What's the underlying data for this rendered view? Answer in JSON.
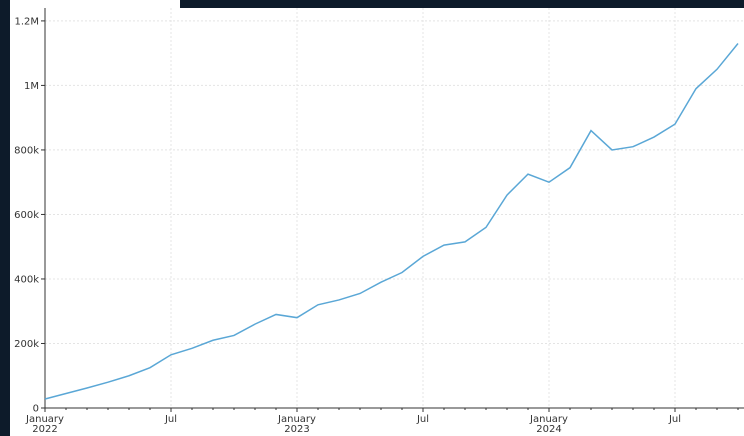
{
  "chart_data": {
    "type": "line",
    "x": [
      "2022-01",
      "2022-02",
      "2022-03",
      "2022-04",
      "2022-05",
      "2022-06",
      "2022-07",
      "2022-08",
      "2022-09",
      "2022-10",
      "2022-11",
      "2022-12",
      "2023-01",
      "2023-02",
      "2023-03",
      "2023-04",
      "2023-05",
      "2023-06",
      "2023-07",
      "2023-08",
      "2023-09",
      "2023-10",
      "2023-11",
      "2023-12",
      "2024-01",
      "2024-02",
      "2024-03",
      "2024-04",
      "2024-05",
      "2024-06",
      "2024-07",
      "2024-08",
      "2024-09",
      "2024-10"
    ],
    "series": [
      {
        "color": "#5aa7d6",
        "values": [
          28000,
          45000,
          62000,
          80000,
          100000,
          125000,
          165000,
          185000,
          210000,
          225000,
          260000,
          290000,
          280000,
          320000,
          335000,
          355000,
          390000,
          420000,
          470000,
          505000,
          515000,
          560000,
          660000,
          725000,
          700000,
          745000,
          860000,
          800000,
          810000,
          840000,
          880000,
          990000,
          1050000,
          1130000
        ]
      }
    ],
    "xlim": [
      "2022-01",
      "2024-10"
    ],
    "xticks": [
      {
        "value": "2022-01",
        "label": "January 2022"
      },
      {
        "value": "2022-07",
        "label": "Jul"
      },
      {
        "value": "2023-01",
        "label": "January 2023"
      },
      {
        "value": "2023-07",
        "label": "Jul"
      },
      {
        "value": "2024-01",
        "label": "January 2024"
      },
      {
        "value": "2024-07",
        "label": "Jul"
      }
    ],
    "ylim": [
      0,
      1240000
    ],
    "yticks": [
      0,
      {
        "value": 200000,
        "label": "200k"
      },
      {
        "value": 400000,
        "label": "400k"
      },
      {
        "value": 600000,
        "label": "600k"
      },
      {
        "value": 800000,
        "label": "800k"
      },
      {
        "value": 1000000,
        "label": "1M"
      },
      {
        "value": 1200000,
        "label": "1.2M"
      }
    ],
    "grid": true
  }
}
